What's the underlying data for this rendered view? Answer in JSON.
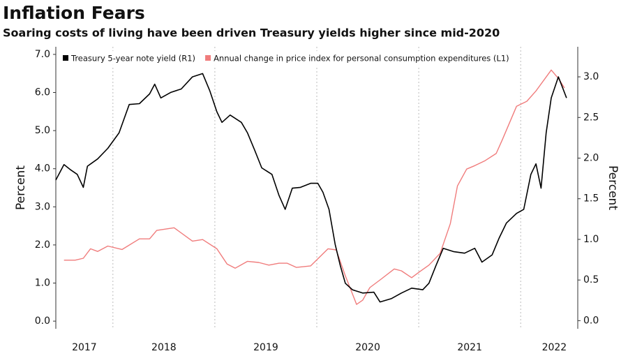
{
  "chart_data": {
    "type": "line",
    "title": "Inflation Fears",
    "subtitle": "Soaring costs of living have been driven Treasury yields higher since mid-2020",
    "ylabel": "Percent",
    "y2label": "Percent",
    "xlim": [
      2017.44,
      2022.56
    ],
    "xgrid": [
      2018,
      2019,
      2020,
      2021,
      2022
    ],
    "xticks": [
      {
        "value": 2017.72,
        "label": "2017"
      },
      {
        "value": 2018.5,
        "label": "2018"
      },
      {
        "value": 2019.5,
        "label": "2019"
      },
      {
        "value": 2020.5,
        "label": "2020"
      },
      {
        "value": 2021.5,
        "label": "2021"
      },
      {
        "value": 2022.33,
        "label": "2022"
      }
    ],
    "ylim": [
      -0.2,
      7.2
    ],
    "yticks": [
      {
        "value": 0,
        "label": "0.0"
      },
      {
        "value": 1,
        "label": "1.0"
      },
      {
        "value": 2,
        "label": "2.0"
      },
      {
        "value": 3,
        "label": "3.0"
      },
      {
        "value": 4,
        "label": "4.0"
      },
      {
        "value": 5,
        "label": "5.0"
      },
      {
        "value": 6,
        "label": "6.0"
      },
      {
        "value": 7,
        "label": "7.0"
      }
    ],
    "y2lim": [
      -0.1,
      3.37
    ],
    "y2ticks": [
      {
        "value": 0,
        "label": "0.0"
      },
      {
        "value": 0.5,
        "label": "0.5"
      },
      {
        "value": 1,
        "label": "1.0"
      },
      {
        "value": 1.5,
        "label": "1.5"
      },
      {
        "value": 2,
        "label": "2.0"
      },
      {
        "value": 2.5,
        "label": "2.5"
      },
      {
        "value": 3,
        "label": "3.0"
      }
    ],
    "grid": true,
    "series": [
      {
        "name": "Treasury 5-year note yield (R1)",
        "color": "#000000",
        "axis": "y2",
        "x": [
          2017.44,
          2017.52,
          2017.58,
          2017.65,
          2017.71,
          2017.75,
          2017.85,
          2017.95,
          2018.06,
          2018.16,
          2018.26,
          2018.36,
          2018.41,
          2018.47,
          2018.57,
          2018.67,
          2018.78,
          2018.88,
          2018.95,
          2019.02,
          2019.07,
          2019.15,
          2019.26,
          2019.32,
          2019.39,
          2019.46,
          2019.56,
          2019.63,
          2019.69,
          2019.76,
          2019.84,
          2019.94,
          2020.01,
          2020.06,
          2020.12,
          2020.18,
          2020.23,
          2020.28,
          2020.35,
          2020.45,
          2020.56,
          2020.62,
          2020.73,
          2020.83,
          2020.93,
          2021.04,
          2021.1,
          2021.17,
          2021.24,
          2021.34,
          2021.45,
          2021.55,
          2021.62,
          2021.72,
          2021.79,
          2021.86,
          2021.96,
          2022.03,
          2022.1,
          2022.15,
          2022.2,
          2022.25,
          2022.3,
          2022.37,
          2022.41,
          2022.45
        ],
        "values": [
          1.73,
          1.92,
          1.86,
          1.8,
          1.64,
          1.9,
          1.99,
          2.12,
          2.31,
          2.66,
          2.67,
          2.79,
          2.91,
          2.74,
          2.81,
          2.85,
          3.0,
          3.04,
          2.83,
          2.57,
          2.44,
          2.53,
          2.44,
          2.31,
          2.1,
          1.88,
          1.8,
          1.54,
          1.37,
          1.63,
          1.64,
          1.69,
          1.69,
          1.58,
          1.37,
          0.94,
          0.68,
          0.46,
          0.38,
          0.34,
          0.35,
          0.23,
          0.27,
          0.34,
          0.4,
          0.38,
          0.46,
          0.68,
          0.89,
          0.85,
          0.83,
          0.89,
          0.72,
          0.81,
          1.02,
          1.2,
          1.32,
          1.37,
          1.8,
          1.93,
          1.63,
          2.31,
          2.74,
          3.0,
          2.87,
          2.74
        ]
      },
      {
        "name": "Annual change in price index for personal consumption expenditures (L1)",
        "color": "#f07c7c",
        "axis": "y",
        "x": [
          2017.52,
          2017.63,
          2017.71,
          2017.78,
          2017.85,
          2017.95,
          2018.09,
          2018.26,
          2018.36,
          2018.43,
          2018.6,
          2018.78,
          2018.88,
          2019.02,
          2019.12,
          2019.2,
          2019.32,
          2019.43,
          2019.53,
          2019.63,
          2019.71,
          2019.8,
          2019.94,
          2020.11,
          2020.19,
          2020.28,
          2020.39,
          2020.45,
          2020.52,
          2020.63,
          2020.76,
          2020.83,
          2020.93,
          2021.0,
          2021.1,
          2021.21,
          2021.31,
          2021.38,
          2021.47,
          2021.55,
          2021.65,
          2021.76,
          2021.82,
          2021.96,
          2022.06,
          2022.15,
          2022.3,
          2022.37,
          2022.43
        ],
        "values": [
          1.6,
          1.6,
          1.65,
          1.9,
          1.83,
          1.97,
          1.88,
          2.16,
          2.16,
          2.38,
          2.45,
          2.1,
          2.14,
          1.9,
          1.5,
          1.39,
          1.57,
          1.54,
          1.47,
          1.52,
          1.52,
          1.41,
          1.45,
          1.9,
          1.87,
          1.19,
          0.44,
          0.55,
          0.88,
          1.1,
          1.37,
          1.32,
          1.14,
          1.28,
          1.47,
          1.78,
          2.56,
          3.55,
          3.99,
          4.08,
          4.21,
          4.4,
          4.76,
          5.64,
          5.77,
          6.04,
          6.59,
          6.37,
          6.12
        ]
      }
    ]
  }
}
